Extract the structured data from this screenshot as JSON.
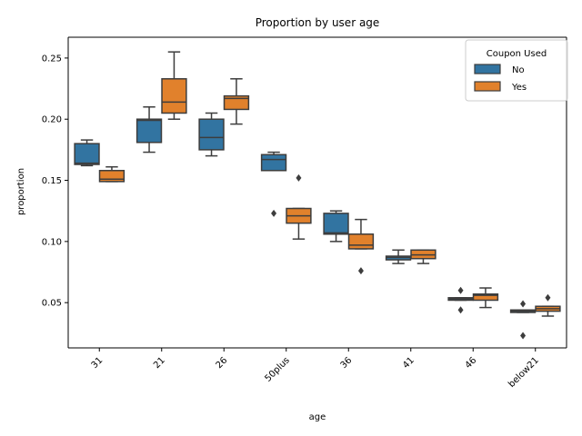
{
  "chart_data": {
    "type": "boxplot",
    "title": "Proportion by user age",
    "xlabel": "age",
    "ylabel": "proportion",
    "ylim": [
      0.013,
      0.267
    ],
    "yticks": [
      0.05,
      0.1,
      0.15,
      0.2,
      0.25
    ],
    "ytick_labels": [
      "0.05",
      "0.10",
      "0.15",
      "0.20",
      "0.25"
    ],
    "categories": [
      "31",
      "21",
      "26",
      "50plus",
      "36",
      "41",
      "46",
      "below21"
    ],
    "legend": {
      "title": "Coupon Used",
      "position": "top-right"
    },
    "grid": false,
    "series": [
      {
        "name": "No",
        "color": "#3274a1",
        "boxes": [
          {
            "whislo": 0.162,
            "q1": 0.163,
            "med": 0.164,
            "q3": 0.18,
            "whishi": 0.183,
            "fliers": []
          },
          {
            "whislo": 0.173,
            "q1": 0.181,
            "med": 0.199,
            "q3": 0.2,
            "whishi": 0.21,
            "fliers": []
          },
          {
            "whislo": 0.17,
            "q1": 0.175,
            "med": 0.185,
            "q3": 0.2,
            "whishi": 0.205,
            "fliers": []
          },
          {
            "whislo": 0.158,
            "q1": 0.158,
            "med": 0.167,
            "q3": 0.171,
            "whishi": 0.173,
            "fliers": [
              0.123
            ]
          },
          {
            "whislo": 0.1,
            "q1": 0.106,
            "med": 0.107,
            "q3": 0.123,
            "whishi": 0.125,
            "fliers": []
          },
          {
            "whislo": 0.082,
            "q1": 0.085,
            "med": 0.087,
            "q3": 0.088,
            "whishi": 0.093,
            "fliers": []
          },
          {
            "whislo": 0.052,
            "q1": 0.052,
            "med": 0.053,
            "q3": 0.054,
            "whishi": 0.054,
            "fliers": [
              0.06,
              0.044
            ]
          },
          {
            "whislo": 0.042,
            "q1": 0.042,
            "med": 0.043,
            "q3": 0.044,
            "whishi": 0.044,
            "fliers": [
              0.049,
              0.023
            ]
          }
        ]
      },
      {
        "name": "Yes",
        "color": "#e1812c",
        "boxes": [
          {
            "whislo": 0.149,
            "q1": 0.149,
            "med": 0.151,
            "q3": 0.158,
            "whishi": 0.161,
            "fliers": []
          },
          {
            "whislo": 0.2,
            "q1": 0.205,
            "med": 0.214,
            "q3": 0.233,
            "whishi": 0.255,
            "fliers": []
          },
          {
            "whislo": 0.196,
            "q1": 0.208,
            "med": 0.217,
            "q3": 0.219,
            "whishi": 0.233,
            "fliers": []
          },
          {
            "whislo": 0.102,
            "q1": 0.115,
            "med": 0.121,
            "q3": 0.127,
            "whishi": 0.127,
            "fliers": [
              0.152
            ]
          },
          {
            "whislo": 0.094,
            "q1": 0.094,
            "med": 0.097,
            "q3": 0.106,
            "whishi": 0.118,
            "fliers": [
              0.076
            ]
          },
          {
            "whislo": 0.082,
            "q1": 0.086,
            "med": 0.089,
            "q3": 0.093,
            "whishi": 0.093,
            "fliers": []
          },
          {
            "whislo": 0.046,
            "q1": 0.052,
            "med": 0.056,
            "q3": 0.057,
            "whishi": 0.062,
            "fliers": []
          },
          {
            "whislo": 0.039,
            "q1": 0.043,
            "med": 0.045,
            "q3": 0.047,
            "whishi": 0.047,
            "fliers": [
              0.054
            ]
          }
        ]
      }
    ]
  }
}
